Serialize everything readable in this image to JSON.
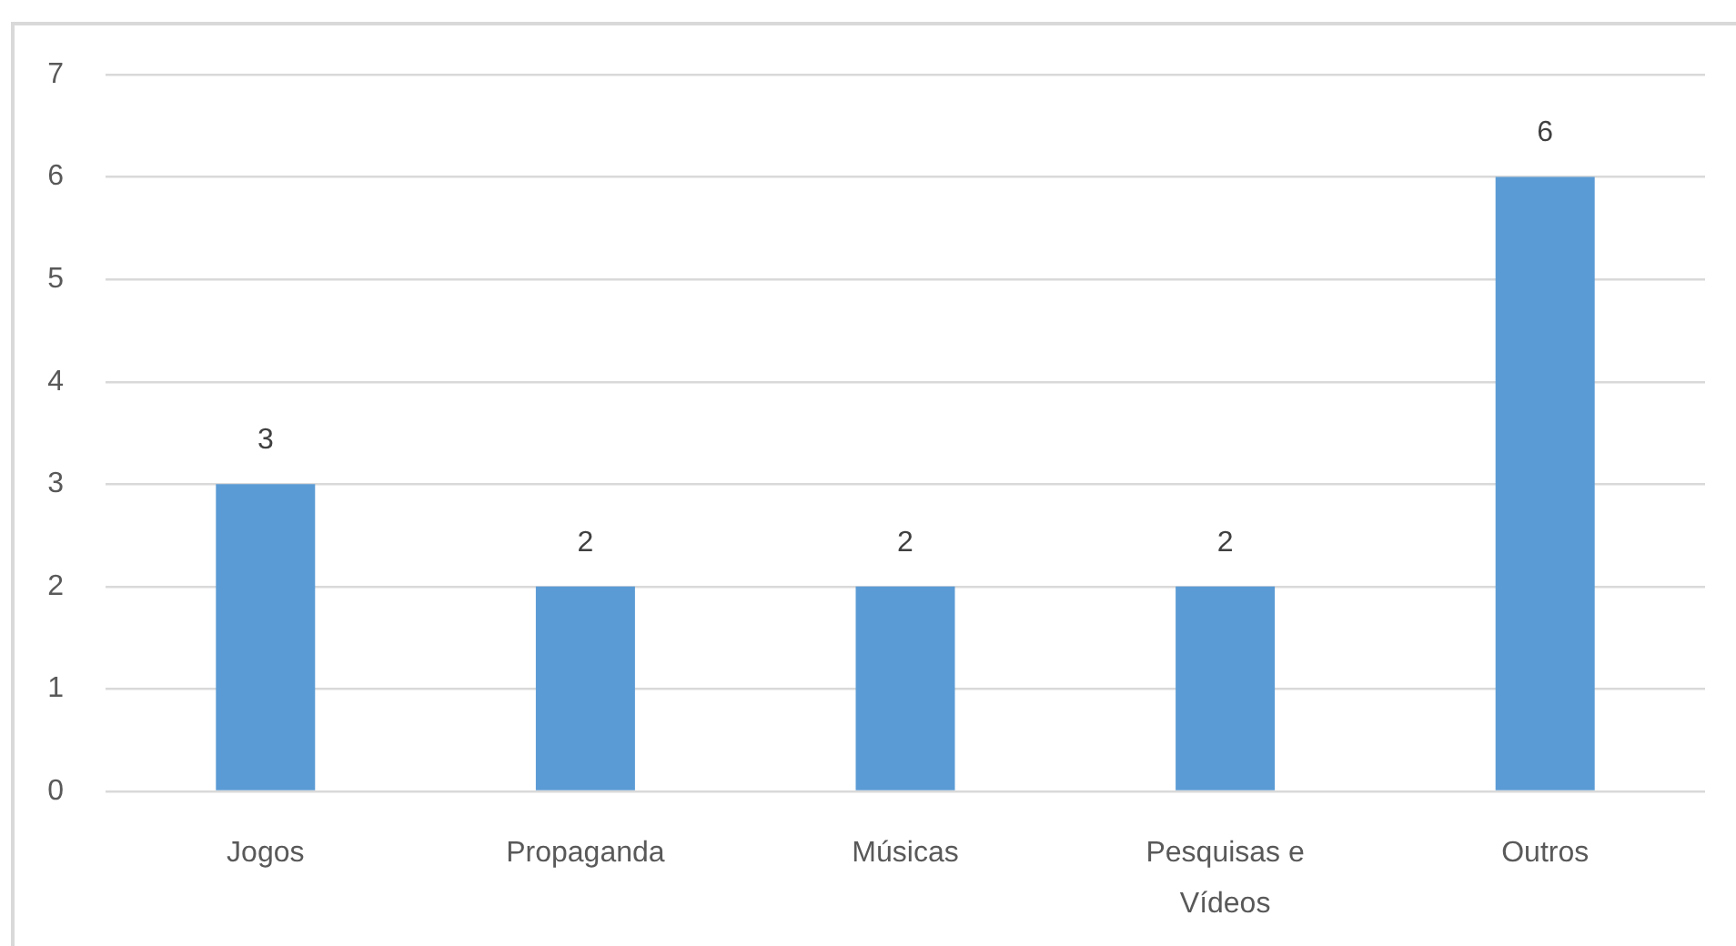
{
  "chart_data": {
    "type": "bar",
    "categories": [
      "Jogos",
      "Propaganda",
      "Músicas",
      "Pesquisas e Vídeos",
      "Outros"
    ],
    "values": [
      3,
      2,
      2,
      2,
      6
    ],
    "color": "#5b9bd5",
    "ylim": [
      0,
      7
    ],
    "yticks": [
      0,
      1,
      2,
      3,
      4,
      5,
      6,
      7
    ],
    "grid": "y",
    "data_labels": true
  }
}
